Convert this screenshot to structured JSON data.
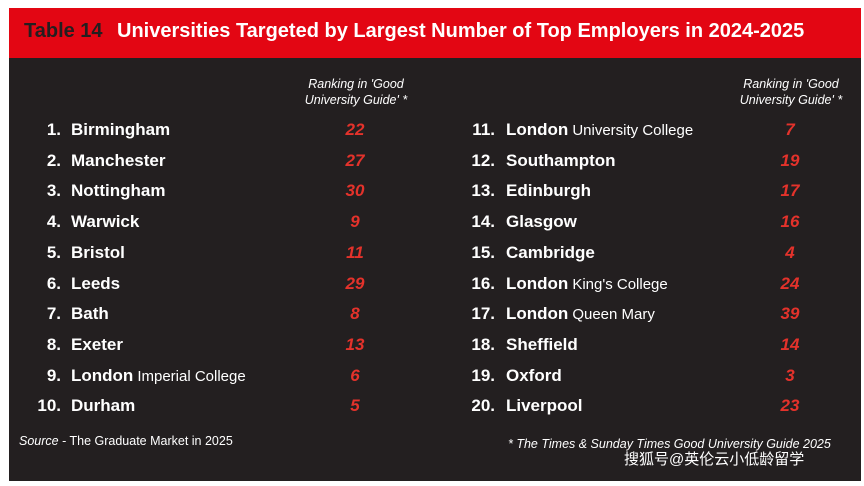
{
  "banner": {
    "label": "Table 14",
    "title": "Universities Targeted by Largest Number of Top Employers in 2024-2025",
    "color": "#e30613"
  },
  "column_header": "Ranking in 'Good University Guide' *",
  "left_rows": [
    {
      "rank": "1.",
      "name": "Birmingham",
      "sub": "",
      "guide": "22"
    },
    {
      "rank": "2.",
      "name": "Manchester",
      "sub": "",
      "guide": "27"
    },
    {
      "rank": "3.",
      "name": "Nottingham",
      "sub": "",
      "guide": "30"
    },
    {
      "rank": "4.",
      "name": "Warwick",
      "sub": "",
      "guide": "9"
    },
    {
      "rank": "5.",
      "name": "Bristol",
      "sub": "",
      "guide": "11"
    },
    {
      "rank": "6.",
      "name": "Leeds",
      "sub": "",
      "guide": "29"
    },
    {
      "rank": "7.",
      "name": "Bath",
      "sub": "",
      "guide": "8"
    },
    {
      "rank": "8.",
      "name": "Exeter",
      "sub": "",
      "guide": "13"
    },
    {
      "rank": "9.",
      "name": "London",
      "sub": "Imperial College",
      "guide": "6"
    },
    {
      "rank": "10.",
      "name": "Durham",
      "sub": "",
      "guide": "5"
    }
  ],
  "right_rows": [
    {
      "rank": "11.",
      "name": "London",
      "sub": "University College",
      "guide": "7"
    },
    {
      "rank": "12.",
      "name": "Southampton",
      "sub": "",
      "guide": "19"
    },
    {
      "rank": "13.",
      "name": "Edinburgh",
      "sub": "",
      "guide": "17"
    },
    {
      "rank": "14.",
      "name": "Glasgow",
      "sub": "",
      "guide": "16"
    },
    {
      "rank": "15.",
      "name": "Cambridge",
      "sub": "",
      "guide": "4"
    },
    {
      "rank": "16.",
      "name": "London",
      "sub": "King's College",
      "guide": "24"
    },
    {
      "rank": "17.",
      "name": "London",
      "sub": "Queen Mary",
      "guide": "39"
    },
    {
      "rank": "18.",
      "name": "Sheffield",
      "sub": "",
      "guide": "14"
    },
    {
      "rank": "19.",
      "name": "Oxford",
      "sub": "",
      "guide": "3"
    },
    {
      "rank": "20.",
      "name": "Liverpool",
      "sub": "",
      "guide": "23"
    }
  ],
  "source": {
    "label": "Source",
    "text": " - The Graduate Market in 2025"
  },
  "footnote": "* The Times & Sunday Times Good University Guide 2025",
  "watermark": "搜狐号@英伦云小低龄留学",
  "colors": {
    "background": "#231f20",
    "guide_value": "#e4322b"
  }
}
